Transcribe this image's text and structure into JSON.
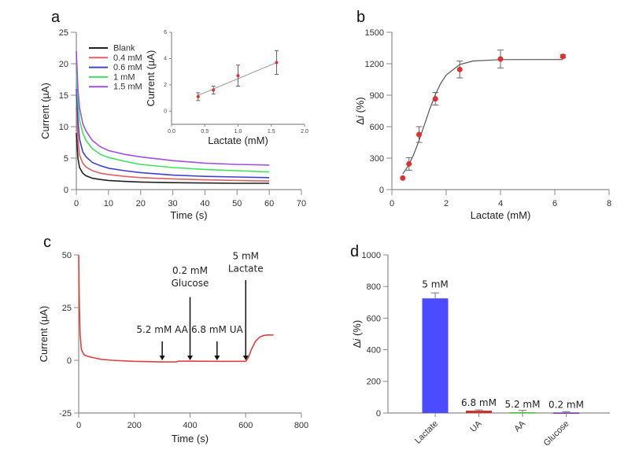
{
  "chart_data": [
    {
      "panel_label": "a",
      "type": "line",
      "xlabel": "Time (s)",
      "ylabel": "Current (µA)",
      "xlim": [
        0,
        70
      ],
      "ylim": [
        0,
        25
      ],
      "xticks": [
        0,
        10,
        20,
        30,
        40,
        50,
        60,
        70
      ],
      "yticks": [
        0,
        5,
        10,
        15,
        20,
        25
      ],
      "legend_position": "top-left",
      "x": [
        0,
        0.5,
        1,
        2,
        3,
        5,
        7.5,
        10,
        15,
        20,
        30,
        40,
        50,
        60
      ],
      "series": [
        {
          "name": "Blank",
          "color": "#222222",
          "values": [
            9,
            5,
            3.5,
            2.6,
            2.2,
            1.8,
            1.6,
            1.45,
            1.3,
            1.2,
            1.1,
            1.05,
            1.0,
            1.0
          ]
        },
        {
          "name": "0.4 mM",
          "color": "#e06060",
          "values": [
            13,
            8,
            5.5,
            4.2,
            3.6,
            3.0,
            2.6,
            2.4,
            2.1,
            1.9,
            1.7,
            1.55,
            1.45,
            1.35
          ]
        },
        {
          "name": "0.6 mM",
          "color": "#4040d0",
          "values": [
            16,
            11,
            8,
            6,
            5.2,
            4.3,
            3.8,
            3.4,
            3.0,
            2.7,
            2.3,
            2.1,
            2.0,
            1.9
          ]
        },
        {
          "name": "1 mM",
          "color": "#40e060",
          "values": [
            19,
            14,
            11,
            9,
            7.8,
            6.5,
            5.6,
            5.1,
            4.5,
            4.0,
            3.5,
            3.2,
            3.0,
            2.8
          ]
        },
        {
          "name": "1.5 mM",
          "color": "#a050e0",
          "values": [
            22,
            16,
            13,
            10.5,
            9.3,
            7.8,
            6.8,
            6.2,
            5.6,
            5.2,
            4.6,
            4.2,
            4.0,
            3.9
          ]
        }
      ]
    },
    {
      "panel_label": "",
      "type": "scatter",
      "inset_of": "a",
      "xlabel": "Lactate (mM)",
      "ylabel": "Current (µA)",
      "xlim": [
        0,
        2
      ],
      "ylim": [
        -1,
        6
      ],
      "xticks": [
        "0.0",
        "0.5",
        "1.0",
        "1.5",
        "2.0"
      ],
      "yticks": [
        0,
        2,
        4,
        6
      ],
      "point_color": "#e03030",
      "points": [
        {
          "x": 0.4,
          "y": 1.1,
          "err": 0.3
        },
        {
          "x": 0.63,
          "y": 1.6,
          "err": 0.3
        },
        {
          "x": 1.0,
          "y": 2.7,
          "err": 0.8
        },
        {
          "x": 1.58,
          "y": 3.7,
          "err": 0.9
        }
      ],
      "fit_line": {
        "x": [
          0.4,
          1.58
        ],
        "y": [
          1.2,
          3.7
        ]
      }
    },
    {
      "panel_label": "b",
      "type": "scatter",
      "xlabel": "Lactate (mM)",
      "ylabel_prefix": "Δ",
      "ylabel_italic": "i",
      "ylabel_suffix": " (%)",
      "xlim": [
        0,
        8
      ],
      "ylim": [
        0,
        1500
      ],
      "xticks": [
        0,
        2,
        4,
        6,
        8
      ],
      "yticks": [
        0,
        300,
        600,
        900,
        1200,
        1500
      ],
      "point_color": "#e03030",
      "points": [
        {
          "x": 0.4,
          "y": 110,
          "err": 0
        },
        {
          "x": 0.63,
          "y": 245,
          "err": 60
        },
        {
          "x": 1.0,
          "y": 525,
          "err": 75
        },
        {
          "x": 1.6,
          "y": 865,
          "err": 60
        },
        {
          "x": 2.5,
          "y": 1145,
          "err": 80
        },
        {
          "x": 4.0,
          "y": 1245,
          "err": 85
        },
        {
          "x": 6.3,
          "y": 1270,
          "err": 15
        }
      ],
      "fit_curve": {
        "x": [
          0.4,
          0.6,
          0.8,
          1.0,
          1.2,
          1.4,
          1.6,
          1.8,
          2.0,
          2.5,
          3,
          4,
          5,
          6.3
        ],
        "y": [
          149,
          226,
          333,
          468,
          620,
          772,
          906,
          1014,
          1092,
          1193,
          1226,
          1239,
          1240,
          1240
        ]
      }
    },
    {
      "panel_label": "c",
      "type": "line",
      "xlabel": "Time (s)",
      "ylabel": "Current (µA)",
      "xlim": [
        0,
        800
      ],
      "ylim": [
        -25,
        50
      ],
      "xticks": [
        0,
        200,
        400,
        600,
        800
      ],
      "yticks": [
        -25,
        0,
        25,
        50
      ],
      "series": [
        {
          "color": "#e04040",
          "x": [
            0,
            2,
            5,
            10,
            20,
            35,
            50,
            80,
            120,
            200,
            300,
            350,
            360,
            400,
            500,
            600,
            610,
            620,
            635,
            650,
            665,
            680,
            700
          ],
          "values": [
            50,
            30,
            12,
            5,
            2.5,
            1.8,
            1.3,
            0.5,
            0,
            -0.5,
            -0.8,
            -0.8,
            -0.4,
            -0.4,
            -0.5,
            -0.5,
            1.5,
            5,
            9,
            11,
            11.8,
            12,
            12
          ]
        }
      ],
      "annotations": [
        {
          "lines": [
            "5.2 mM AA"
          ],
          "x": 300,
          "text_y": 13,
          "arrow_from": 9,
          "arrow_to": 0
        },
        {
          "lines": [
            "0.2 mM",
            "Glucose"
          ],
          "x": 400,
          "text_y": 41,
          "arrow_from": 30,
          "arrow_to": 0
        },
        {
          "lines": [
            "6.8 mM UA"
          ],
          "x": 497,
          "text_y": 13,
          "arrow_from": 9,
          "arrow_to": 0
        },
        {
          "lines": [
            "5 mM",
            "Lactate"
          ],
          "x": 600,
          "text_y": 48,
          "arrow_from": 38,
          "arrow_to": 0
        }
      ]
    },
    {
      "panel_label": "d",
      "type": "bar",
      "ylabel_prefix": "Δ",
      "ylabel_italic": "i",
      "ylabel_suffix": " (%)",
      "ylim": [
        0,
        1000
      ],
      "yticks": [
        0,
        200,
        400,
        600,
        800,
        1000
      ],
      "categories": [
        "Lactate",
        "UA",
        "AA",
        "Glucose"
      ],
      "values": [
        725,
        15,
        5,
        3
      ],
      "errors": [
        35,
        5,
        12,
        5
      ],
      "data_labels": [
        "5 mM",
        "6.8 mM",
        "5.2 mM",
        "0.2 mM"
      ],
      "colors": [
        "#4b4bff",
        "#d03030",
        "#40c040",
        "#7030a0"
      ]
    }
  ]
}
